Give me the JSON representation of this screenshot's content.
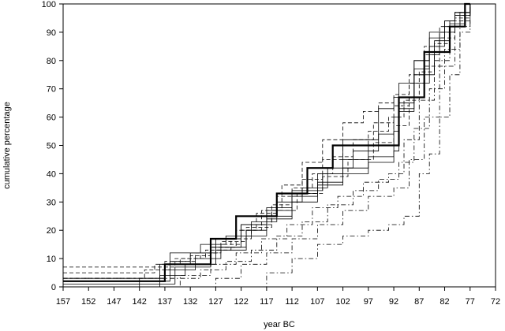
{
  "chart_data": {
    "type": "line",
    "xlabel": "year BC",
    "ylabel": "cumulative percentage",
    "xlim": [
      157,
      72
    ],
    "ylim": [
      0,
      100
    ],
    "x_ticks": [
      157,
      152,
      147,
      142,
      137,
      132,
      127,
      122,
      117,
      112,
      107,
      102,
      97,
      92,
      87,
      82,
      77,
      72
    ],
    "y_ticks": [
      0,
      10,
      20,
      30,
      40,
      50,
      60,
      70,
      80,
      90,
      100
    ],
    "grid": false,
    "legend": "none",
    "series": [
      {
        "style": "bold",
        "x": [
          157,
          151,
          137,
          136,
          128,
          127,
          123,
          122,
          118,
          117,
          115,
          113,
          109,
          108,
          104,
          103,
          92,
          91,
          87,
          86,
          84,
          82,
          81,
          80,
          78,
          77
        ],
        "y": [
          2,
          2,
          8,
          8,
          17,
          17,
          25,
          25,
          25,
          25,
          33,
          33,
          42,
          42,
          50,
          50,
          50,
          67,
          67,
          83,
          83,
          83,
          92,
          92,
          100,
          100
        ]
      },
      {
        "style": "solid",
        "x": [
          157,
          140,
          136,
          130,
          125,
          120,
          115,
          110,
          105,
          100,
          95,
          92,
          91,
          88,
          85,
          82,
          80,
          78
        ],
        "y": [
          2,
          2,
          12,
          15,
          18,
          23,
          30,
          35,
          42,
          48,
          54,
          60,
          72,
          80,
          88,
          94,
          97,
          100
        ]
      },
      {
        "style": "solid",
        "x": [
          157,
          145,
          138,
          132,
          127,
          122,
          117,
          112,
          107,
          102,
          97,
          92,
          91,
          88,
          85,
          82,
          79,
          77
        ],
        "y": [
          3,
          3,
          8,
          12,
          17,
          22,
          28,
          33,
          40,
          45,
          50,
          55,
          65,
          77,
          85,
          92,
          97,
          100
        ]
      },
      {
        "style": "solid",
        "x": [
          150,
          142,
          137,
          131,
          126,
          121,
          117,
          112,
          107,
          102,
          97,
          92,
          91,
          88,
          85,
          83,
          80,
          77
        ],
        "y": [
          0,
          3,
          6,
          10,
          14,
          20,
          25,
          32,
          37,
          42,
          46,
          50,
          62,
          72,
          82,
          90,
          96,
          100
        ]
      },
      {
        "style": "solid",
        "x": [
          157,
          142,
          135,
          128,
          122,
          117,
          112,
          106,
          102,
          95,
          92,
          88,
          85,
          82,
          80,
          77
        ],
        "y": [
          1,
          1,
          7,
          14,
          22,
          27,
          34,
          40,
          52,
          63,
          67,
          80,
          90,
          94,
          97,
          100
        ]
      },
      {
        "style": "solid",
        "x": [
          143,
          138,
          133,
          127,
          121,
          117,
          112,
          107,
          102,
          97,
          92,
          91,
          88,
          84,
          81,
          78
        ],
        "y": [
          0,
          4,
          8,
          13,
          18,
          24,
          30,
          36,
          40,
          44,
          48,
          63,
          75,
          87,
          93,
          100
        ]
      },
      {
        "style": "dashed",
        "x": [
          157,
          140,
          135,
          130,
          126,
          122,
          118,
          114,
          110,
          106,
          102,
          98,
          95,
          92,
          89,
          86,
          83,
          80,
          77
        ],
        "y": [
          7,
          7,
          10,
          12,
          15,
          20,
          27,
          36,
          44,
          52,
          58,
          62,
          65,
          68,
          75,
          85,
          92,
          97,
          100
        ]
      },
      {
        "style": "dashed",
        "x": [
          157,
          142,
          137,
          132,
          128,
          123,
          119,
          115,
          110,
          106,
          102,
          97,
          93,
          90,
          87,
          84,
          81,
          78
        ],
        "y": [
          2,
          2,
          9,
          11,
          14,
          20,
          26,
          32,
          38,
          45,
          50,
          55,
          60,
          66,
          76,
          86,
          94,
          100
        ]
      },
      {
        "style": "dashed",
        "x": [
          157,
          145,
          139,
          134,
          129,
          124,
          120,
          116,
          112,
          108,
          104,
          100,
          96,
          92,
          89,
          86,
          83,
          80,
          77
        ],
        "y": [
          5,
          5,
          8,
          10,
          13,
          17,
          22,
          29,
          35,
          40,
          46,
          52,
          58,
          64,
          72,
          82,
          90,
          96,
          100
        ]
      },
      {
        "style": "dashed",
        "x": [
          157,
          148,
          141,
          136,
          131,
          126,
          121,
          116,
          111,
          106,
          101,
          96,
          92,
          89,
          86,
          83,
          80,
          77
        ],
        "y": [
          3,
          3,
          6,
          9,
          12,
          16,
          21,
          27,
          33,
          39,
          45,
          51,
          57,
          67,
          78,
          88,
          95,
          100
        ]
      },
      {
        "style": "dashdot",
        "x": [
          132,
          127,
          122,
          117,
          112,
          107,
          102,
          97,
          92,
          89,
          86,
          83,
          80,
          77
        ],
        "y": [
          0,
          3,
          8,
          12,
          17,
          22,
          27,
          32,
          35,
          45,
          60,
          78,
          92,
          100
        ]
      },
      {
        "style": "dashdot",
        "x": [
          140,
          134,
          128,
          123,
          118,
          113,
          108,
          103,
          98,
          93,
          90,
          87,
          84,
          81,
          78
        ],
        "y": [
          0,
          4,
          8,
          12,
          17,
          22,
          28,
          32,
          37,
          40,
          52,
          66,
          80,
          92,
          100
        ]
      },
      {
        "style": "dashdot",
        "x": [
          157,
          136,
          130,
          125,
          120,
          115,
          110,
          105,
          100,
          95,
          91,
          88,
          85,
          82,
          79,
          77
        ],
        "y": [
          3,
          3,
          6,
          9,
          13,
          18,
          23,
          29,
          34,
          38,
          44,
          56,
          70,
          84,
          94,
          100
        ]
      },
      {
        "style": "dashdot",
        "x": [
          122,
          117,
          112,
          107,
          102,
          97,
          93,
          90,
          87,
          85,
          83,
          81,
          79,
          77
        ],
        "y": [
          0,
          5,
          10,
          15,
          18,
          20,
          22,
          25,
          40,
          47,
          60,
          75,
          90,
          100
        ]
      }
    ]
  }
}
